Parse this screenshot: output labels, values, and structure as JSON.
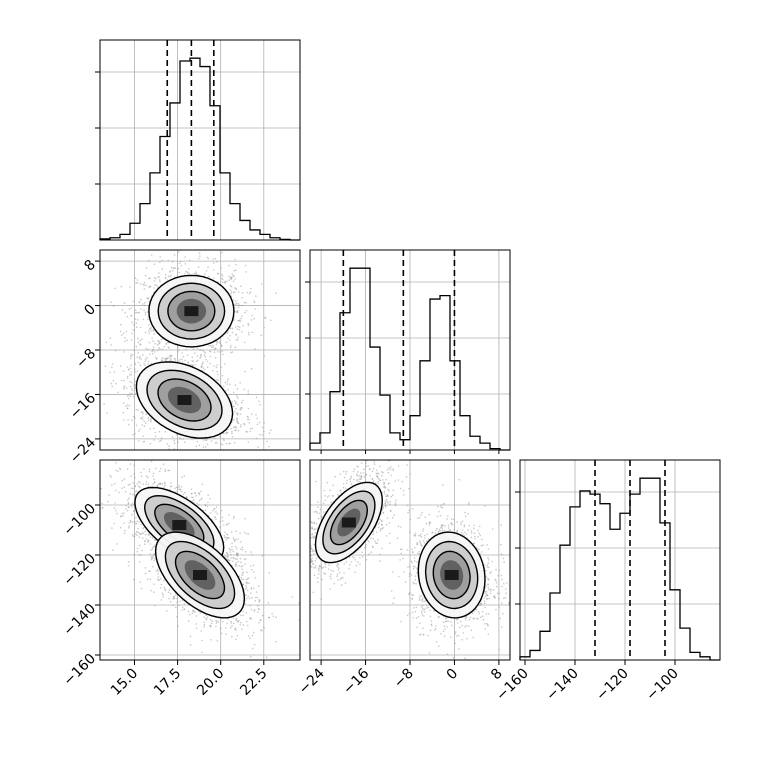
{
  "chart_data": {
    "type": "corner",
    "params": [
      "p0",
      "p1",
      "p2"
    ],
    "grid": true,
    "ranges": {
      "p0": [
        13.0,
        24.6
      ],
      "p1": [
        -26.0,
        10.0
      ],
      "p2": [
        -162.0,
        -82.0
      ]
    },
    "ticks": {
      "p0": {
        "values": [
          15.0,
          17.5,
          20.0,
          22.5
        ],
        "labels": [
          "15.0",
          "17.5",
          "20.0",
          "22.5"
        ]
      },
      "p1": {
        "values": [
          -24,
          -16,
          -8,
          0,
          8
        ],
        "labels": [
          "−24",
          "−16",
          "−8",
          "0",
          "8"
        ]
      },
      "p2": {
        "values": [
          -160,
          -140,
          -120,
          -100
        ],
        "labels": [
          "−160",
          "−140",
          "−120",
          "−100"
        ]
      }
    },
    "histograms": [
      {
        "param": "p0",
        "bin_edges": [
          13.0,
          13.58,
          14.16,
          14.74,
          15.32,
          15.9,
          16.48,
          17.06,
          17.64,
          18.22,
          18.8,
          19.38,
          19.96,
          20.54,
          21.12,
          21.7,
          22.28,
          22.86,
          23.44,
          24.02,
          24.6
        ],
        "counts": [
          0.2,
          0.4,
          1.0,
          3.0,
          6.5,
          12.0,
          18.5,
          24.5,
          32.0,
          32.5,
          31.0,
          24.0,
          12.0,
          6.5,
          3.5,
          1.8,
          1.0,
          0.4,
          0.1,
          0.0
        ],
        "quantiles": [
          16.9,
          18.3,
          19.6
        ]
      },
      {
        "param": "p1",
        "bin_edges": [
          -26.0,
          -24.2,
          -22.4,
          -20.6,
          -18.8,
          -17.0,
          -15.2,
          -13.4,
          -11.6,
          -9.8,
          -8.0,
          -6.2,
          -4.4,
          -2.6,
          -0.8,
          1.0,
          2.8,
          4.6,
          6.4,
          8.2,
          10.0
        ],
        "counts": [
          1.0,
          2.5,
          8.5,
          20.0,
          26.5,
          26.5,
          15.0,
          8.0,
          2.5,
          1.5,
          5.0,
          13.0,
          22.0,
          22.5,
          13.0,
          5.0,
          2.0,
          1.0,
          0.2,
          0.0
        ],
        "quantiles": [
          -20.0,
          -9.2,
          0.0
        ]
      },
      {
        "param": "p2",
        "bin_edges": [
          -162.0,
          -158.0,
          -154.0,
          -150.0,
          -146.0,
          -142.0,
          -138.0,
          -134.0,
          -130.0,
          -126.0,
          -122.0,
          -118.0,
          -114.0,
          -110.0,
          -106.0,
          -102.0,
          -98.0,
          -94.0,
          -90.0,
          -86.0,
          -82.0
        ],
        "counts": [
          0.5,
          1.5,
          4.5,
          10.5,
          18.0,
          24.0,
          26.5,
          26.0,
          24.5,
          20.5,
          23.0,
          26.0,
          28.5,
          28.5,
          21.5,
          11.0,
          5.0,
          1.2,
          0.5,
          0.0
        ],
        "quantiles": [
          -132.0,
          -118.0,
          -104.0
        ]
      }
    ],
    "pair_plots": [
      {
        "x": "p0",
        "y": "p1",
        "density_modes": [
          {
            "x": 18.3,
            "y": -1.0,
            "sx": 1.15,
            "sy": 3.0,
            "rho": 0.0
          },
          {
            "x": 17.9,
            "y": -17.0,
            "sx": 1.3,
            "sy": 3.2,
            "rho": -0.35
          }
        ]
      },
      {
        "x": "p0",
        "y": "p2",
        "density_modes": [
          {
            "x": 17.6,
            "y": -108.0,
            "sx": 1.2,
            "sy": 7.0,
            "rho": -0.6
          },
          {
            "x": 18.8,
            "y": -128.0,
            "sx": 1.2,
            "sy": 8.0,
            "rho": -0.55
          }
        ]
      },
      {
        "x": "p1",
        "y": "p2",
        "density_modes": [
          {
            "x": -19.0,
            "y": -107.0,
            "sx": 2.8,
            "sy": 7.5,
            "rho": 0.55
          },
          {
            "x": -0.5,
            "y": -128.0,
            "sx": 2.8,
            "sy": 8.0,
            "rho": -0.1
          }
        ]
      }
    ]
  }
}
